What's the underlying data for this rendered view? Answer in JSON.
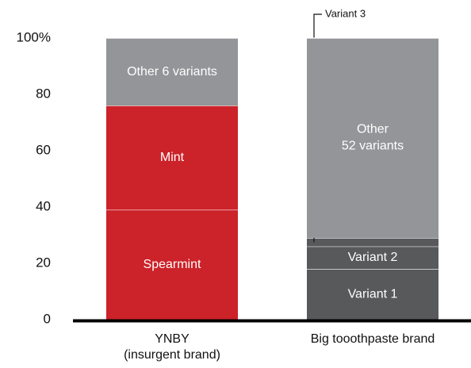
{
  "chart_data": {
    "type": "stacked_bar",
    "categories": [
      [
        "YNBY",
        "(insurgent brand)"
      ],
      [
        "Big tooothpaste brand"
      ]
    ],
    "series": [
      {
        "name": [
          "Spearmint"
        ],
        "color": "#cc2229",
        "values": [
          39,
          null
        ]
      },
      {
        "name": [
          "Mint"
        ],
        "color": "#cc2229",
        "values": [
          37,
          null
        ]
      },
      {
        "name": [
          "Other 6 variants"
        ],
        "color": "#939598",
        "values": [
          24,
          null
        ]
      },
      {
        "name": [
          "Variant 1"
        ],
        "color": "#58595b",
        "values": [
          null,
          18
        ]
      },
      {
        "name": [
          "Variant 2"
        ],
        "color": "#58595b",
        "values": [
          null,
          8
        ]
      },
      {
        "name": [
          "Variant 3"
        ],
        "color": "#58595b",
        "values": [
          null,
          3
        ],
        "callout": true
      },
      {
        "name": [
          "Other",
          "52 variants"
        ],
        "color": "#939598",
        "values": [
          null,
          71
        ]
      }
    ],
    "ylim": [
      0,
      100
    ],
    "yticks": [
      0,
      20,
      40,
      60,
      80,
      {
        "value": 100,
        "label": "100%"
      }
    ],
    "grid": false
  }
}
